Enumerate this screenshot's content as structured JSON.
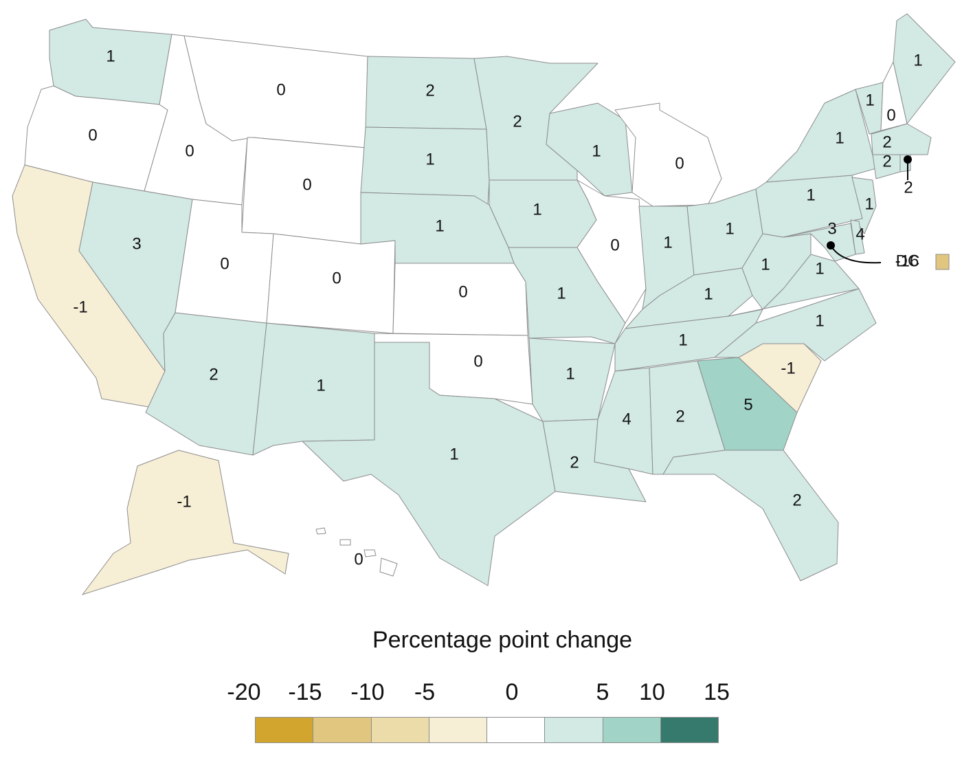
{
  "colors": {
    "neg20": "#d2a62e",
    "neg15": "#e1c680",
    "neg10": "#ecdcaa",
    "neg5": "#f7eed6",
    "zero": "#ffffff",
    "pos5": "#d2e9e4",
    "pos10": "#a1d3c7",
    "pos15": "#357a6d"
  },
  "states": [
    {
      "id": "WA",
      "value": "1"
    },
    {
      "id": "OR",
      "value": "0"
    },
    {
      "id": "CA",
      "value": "-1"
    },
    {
      "id": "ID",
      "value": "0"
    },
    {
      "id": "NV",
      "value": "3"
    },
    {
      "id": "MT",
      "value": "0"
    },
    {
      "id": "WY",
      "value": "0"
    },
    {
      "id": "UT",
      "value": "0"
    },
    {
      "id": "AZ",
      "value": "2"
    },
    {
      "id": "CO",
      "value": "0"
    },
    {
      "id": "NM",
      "value": "1"
    },
    {
      "id": "ND",
      "value": "2"
    },
    {
      "id": "SD",
      "value": "1"
    },
    {
      "id": "NE",
      "value": "1"
    },
    {
      "id": "KS",
      "value": "0"
    },
    {
      "id": "OK",
      "value": "0"
    },
    {
      "id": "TX",
      "value": "1"
    },
    {
      "id": "MN",
      "value": "2"
    },
    {
      "id": "IA",
      "value": "1"
    },
    {
      "id": "MO",
      "value": "1"
    },
    {
      "id": "AR",
      "value": "1"
    },
    {
      "id": "LA",
      "value": "2"
    },
    {
      "id": "WI",
      "value": "1"
    },
    {
      "id": "IL",
      "value": "0"
    },
    {
      "id": "MI",
      "value": "0"
    },
    {
      "id": "IN",
      "value": "1"
    },
    {
      "id": "OH",
      "value": "1"
    },
    {
      "id": "KY",
      "value": "1"
    },
    {
      "id": "TN",
      "value": "1"
    },
    {
      "id": "MS",
      "value": "4"
    },
    {
      "id": "AL",
      "value": "2"
    },
    {
      "id": "GA",
      "value": "5"
    },
    {
      "id": "FL",
      "value": "2"
    },
    {
      "id": "SC",
      "value": "-1"
    },
    {
      "id": "NC",
      "value": "1"
    },
    {
      "id": "VA",
      "value": "1"
    },
    {
      "id": "WV",
      "value": "1"
    },
    {
      "id": "PA",
      "value": "1"
    },
    {
      "id": "NY",
      "value": "1"
    },
    {
      "id": "VT",
      "value": "1"
    },
    {
      "id": "NH",
      "value": "0"
    },
    {
      "id": "ME",
      "value": "1"
    },
    {
      "id": "MA",
      "value": "2"
    },
    {
      "id": "CT",
      "value": "2"
    },
    {
      "id": "RI",
      "value": "2"
    },
    {
      "id": "NJ",
      "value": "1"
    },
    {
      "id": "DE",
      "value": "4"
    },
    {
      "id": "MD",
      "value": "3"
    },
    {
      "id": "DC",
      "value": "-16"
    },
    {
      "id": "AK",
      "value": "-1"
    },
    {
      "id": "HI",
      "value": "0"
    }
  ],
  "dc_label": "DC",
  "legend": {
    "title": "Percentage point change",
    "ticks": [
      "-20",
      "-15",
      "-10",
      "-5",
      "0",
      "5",
      "10",
      "15"
    ],
    "bins": [
      "neg20",
      "neg15",
      "neg10",
      "neg5",
      "zero",
      "pos5",
      "pos10",
      "pos15"
    ]
  }
}
